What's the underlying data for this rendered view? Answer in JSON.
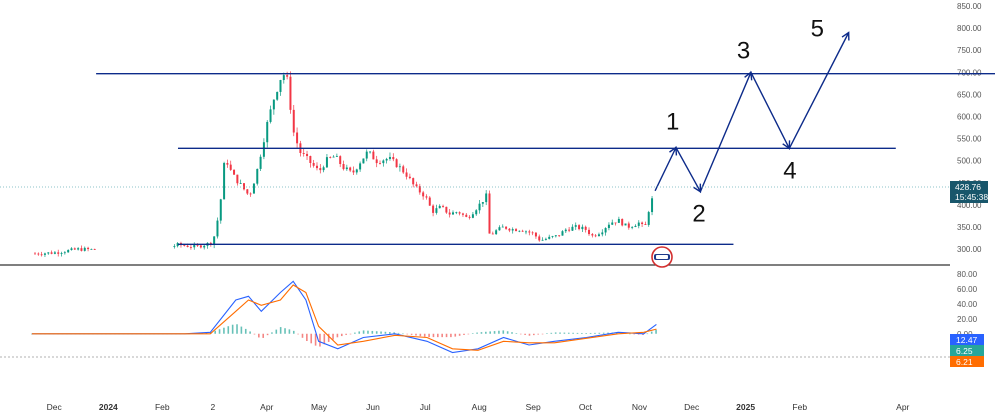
{
  "chart_data": [
    {
      "type": "candlestick",
      "title": "",
      "ylim": [
        280,
        850
      ],
      "y_ticks": [
        "850.00",
        "800.00",
        "750.00",
        "700.00",
        "650.00",
        "600.00",
        "550.00",
        "500.00",
        "450.00",
        "400.00",
        "350.00",
        "300.00"
      ],
      "x_ticks": [
        "Dec",
        "2024",
        "Feb",
        "2",
        "Apr",
        "May",
        "Jun",
        "Jul",
        "Aug",
        "Sep",
        "Oct",
        "Nov",
        "Dec",
        "2025",
        "Feb",
        "Apr"
      ],
      "last_price": "428.76",
      "countdown": "15:45:38",
      "colors": {
        "up": "#089981",
        "down": "#f23645",
        "trend": "#0d2b8a",
        "badge": "#18566b"
      },
      "price_series": [
        [
          "2023-11-20",
          290
        ],
        [
          "2023-12-01",
          292
        ],
        [
          "2023-12-15",
          300
        ],
        [
          "2024-01-01",
          298
        ],
        [
          "2024-01-10",
          318
        ],
        [
          "2024-01-20",
          300
        ],
        [
          "2024-02-01",
          300
        ],
        [
          "2024-02-10",
          310
        ],
        [
          "2024-02-20",
          305
        ],
        [
          "2024-03-01",
          315
        ],
        [
          "2024-03-05",
          390
        ],
        [
          "2024-03-08",
          510
        ],
        [
          "2024-03-12",
          470
        ],
        [
          "2024-03-18",
          440
        ],
        [
          "2024-03-22",
          420
        ],
        [
          "2024-03-26",
          470
        ],
        [
          "2024-04-01",
          580
        ],
        [
          "2024-04-05",
          640
        ],
        [
          "2024-04-10",
          700
        ],
        [
          "2024-04-13",
          680
        ],
        [
          "2024-04-16",
          570
        ],
        [
          "2024-04-20",
          520
        ],
        [
          "2024-04-25",
          500
        ],
        [
          "2024-05-01",
          475
        ],
        [
          "2024-05-05",
          500
        ],
        [
          "2024-05-10",
          510
        ],
        [
          "2024-05-15",
          485
        ],
        [
          "2024-05-20",
          470
        ],
        [
          "2024-05-25",
          500
        ],
        [
          "2024-05-29",
          520
        ],
        [
          "2024-06-03",
          500
        ],
        [
          "2024-06-10",
          505
        ],
        [
          "2024-06-15",
          490
        ],
        [
          "2024-06-20",
          470
        ],
        [
          "2024-06-25",
          440
        ],
        [
          "2024-07-01",
          420
        ],
        [
          "2024-07-05",
          385
        ],
        [
          "2024-07-10",
          395
        ],
        [
          "2024-07-15",
          380
        ],
        [
          "2024-07-20",
          385
        ],
        [
          "2024-07-25",
          370
        ],
        [
          "2024-08-01",
          400
        ],
        [
          "2024-08-05",
          420
        ],
        [
          "2024-08-07",
          330
        ],
        [
          "2024-08-10",
          340
        ],
        [
          "2024-08-15",
          350
        ],
        [
          "2024-08-20",
          345
        ],
        [
          "2024-08-25",
          345
        ],
        [
          "2024-09-01",
          335
        ],
        [
          "2024-09-05",
          320
        ],
        [
          "2024-09-10",
          325
        ],
        [
          "2024-09-15",
          330
        ],
        [
          "2024-09-20",
          345
        ],
        [
          "2024-09-25",
          350
        ],
        [
          "2024-10-01",
          345
        ],
        [
          "2024-10-05",
          330
        ],
        [
          "2024-10-10",
          340
        ],
        [
          "2024-10-15",
          360
        ],
        [
          "2024-10-20",
          365
        ],
        [
          "2024-10-25",
          350
        ],
        [
          "2024-11-01",
          360
        ],
        [
          "2024-11-04",
          345
        ],
        [
          "2024-11-07",
          400
        ],
        [
          "2024-11-10",
          428.76
        ]
      ],
      "horizontal_levels": [
        {
          "price": 697,
          "from": "2023-12-25",
          "to": "2025-06-08"
        },
        {
          "price": 528,
          "from": "2024-02-10",
          "to": "2025-03-28"
        },
        {
          "price": 311,
          "from": "2024-02-10",
          "to": "2024-12-25"
        }
      ],
      "wave_path": [
        {
          "label": "",
          "date": "2024-11-10",
          "price": 432
        },
        {
          "label": "1",
          "date": "2024-11-22",
          "price": 530
        },
        {
          "label": "2",
          "date": "2024-12-06",
          "price": 430
        },
        {
          "label": "3",
          "date": "2025-01-04",
          "price": 700
        },
        {
          "label": "4",
          "date": "2025-01-26",
          "price": 528
        },
        {
          "label": "5",
          "date": "2025-03-01",
          "price": 790
        }
      ]
    },
    {
      "type": "line",
      "title": "",
      "ylim": [
        -75,
        85
      ],
      "y_ticks": [
        "80.00",
        "60.00",
        "40.00",
        "20.00",
        "0.00",
        "-20.00"
      ],
      "badges": [
        "12.47",
        "6.25",
        "6.21"
      ],
      "series": [
        {
          "color": "#2962ff",
          "values": [
            [
              2023.88,
              0
            ],
            [
              2024.0,
              0
            ],
            [
              2024.12,
              0
            ],
            [
              2024.16,
              2
            ],
            [
              2024.2,
              45
            ],
            [
              2024.22,
              50
            ],
            [
              2024.24,
              30
            ],
            [
              2024.27,
              55
            ],
            [
              2024.29,
              70
            ],
            [
              2024.31,
              45
            ],
            [
              2024.33,
              -10
            ],
            [
              2024.36,
              -20
            ],
            [
              2024.4,
              -5
            ],
            [
              2024.45,
              0
            ],
            [
              2024.5,
              -10
            ],
            [
              2024.54,
              -25
            ],
            [
              2024.58,
              -20
            ],
            [
              2024.62,
              -5
            ],
            [
              2024.66,
              -15
            ],
            [
              2024.7,
              -10
            ],
            [
              2024.75,
              -5
            ],
            [
              2024.8,
              2
            ],
            [
              2024.84,
              0
            ],
            [
              2024.86,
              12.47
            ]
          ]
        },
        {
          "color": "#ff6d00",
          "values": [
            [
              2023.88,
              0
            ],
            [
              2024.0,
              0
            ],
            [
              2024.12,
              0
            ],
            [
              2024.16,
              0
            ],
            [
              2024.2,
              30
            ],
            [
              2024.22,
              45
            ],
            [
              2024.24,
              38
            ],
            [
              2024.27,
              45
            ],
            [
              2024.29,
              65
            ],
            [
              2024.31,
              55
            ],
            [
              2024.33,
              10
            ],
            [
              2024.36,
              -15
            ],
            [
              2024.4,
              -10
            ],
            [
              2024.45,
              -2
            ],
            [
              2024.5,
              -5
            ],
            [
              2024.54,
              -20
            ],
            [
              2024.58,
              -22
            ],
            [
              2024.62,
              -10
            ],
            [
              2024.66,
              -12
            ],
            [
              2024.7,
              -12
            ],
            [
              2024.75,
              -6
            ],
            [
              2024.8,
              0
            ],
            [
              2024.84,
              2
            ],
            [
              2024.86,
              6.21
            ]
          ]
        }
      ]
    }
  ]
}
